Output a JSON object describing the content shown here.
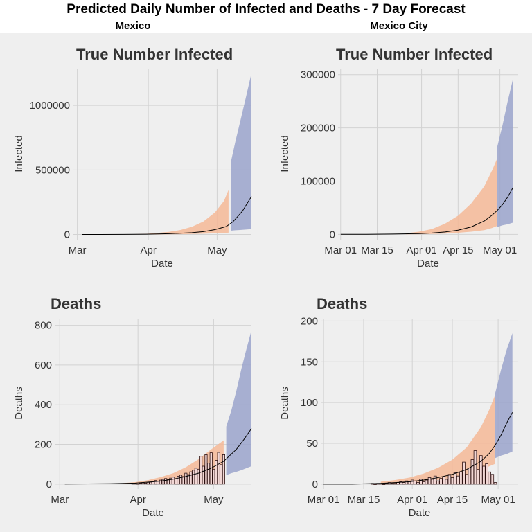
{
  "page": {
    "title": "Predicted Daily Number of Infected and Deaths - 7 Day Forecast",
    "left_column_title": "Mexico",
    "right_column_title": "Mexico City"
  },
  "colors": {
    "panel_bg": "#efefef",
    "grid": "#d2d2d2",
    "history_band": "#f4b896",
    "forecast_band": "#9aa3cb",
    "line": "#000000",
    "bar_fill": "#f2d7d5",
    "bar_stroke": "#2b1010",
    "text": "#333333"
  },
  "chart_data": [
    {
      "id": "mexico-infected",
      "type": "line",
      "title": "True Number Infected",
      "xlabel": "Date",
      "ylabel": "Infected",
      "xlim": [
        -2,
        76
      ],
      "ylim": [
        -40000,
        1280000
      ],
      "x_ticks": [
        {
          "x": 0,
          "label": "Mar"
        },
        {
          "x": 31,
          "label": "Apr"
        },
        {
          "x": 61,
          "label": "May"
        }
      ],
      "y_ticks": [
        {
          "y": 0,
          "label": "0"
        },
        {
          "y": 500000,
          "label": "500000"
        },
        {
          "y": 1000000,
          "label": "1000000"
        }
      ],
      "estimate": {
        "x": [
          2,
          10,
          20,
          30,
          40,
          50,
          55,
          60,
          65,
          68,
          72,
          76
        ],
        "y": [
          0,
          200,
          800,
          2500,
          6000,
          14000,
          22000,
          38000,
          62000,
          100000,
          180000,
          295000
        ]
      },
      "history_band": {
        "x": [
          20,
          30,
          40,
          45,
          50,
          55,
          60,
          64,
          66
        ],
        "lower": [
          0,
          500,
          1500,
          2500,
          4000,
          6000,
          9000,
          12000,
          14000
        ],
        "upper": [
          1000,
          5000,
          20000,
          35000,
          60000,
          100000,
          170000,
          260000,
          345000
        ]
      },
      "forecast_band": {
        "x": [
          67,
          69,
          71,
          73,
          76
        ],
        "lower": [
          30000,
          33000,
          35000,
          38000,
          42000
        ],
        "upper": [
          560000,
          720000,
          870000,
          1020000,
          1250000
        ]
      }
    },
    {
      "id": "mexico-city-infected",
      "type": "line",
      "title": "True Number Infected",
      "xlabel": "Date",
      "ylabel": "Infected",
      "xlim": [
        -1,
        68
      ],
      "ylim": [
        -10000,
        310000
      ],
      "x_ticks": [
        {
          "x": 0,
          "label": "Mar 01"
        },
        {
          "x": 14,
          "label": "Mar 15"
        },
        {
          "x": 31,
          "label": "Apr 01"
        },
        {
          "x": 45,
          "label": "Apr 15"
        },
        {
          "x": 61,
          "label": "May 01"
        }
      ],
      "y_ticks": [
        {
          "y": 0,
          "label": "0"
        },
        {
          "y": 100000,
          "label": "100000"
        },
        {
          "y": 200000,
          "label": "200000"
        },
        {
          "y": 300000,
          "label": "300000"
        }
      ],
      "estimate": {
        "x": [
          0,
          10,
          20,
          30,
          35,
          40,
          45,
          50,
          55,
          58,
          60,
          62,
          64,
          66
        ],
        "y": [
          0,
          100,
          500,
          1500,
          2500,
          4500,
          8000,
          14000,
          25000,
          36000,
          45000,
          56000,
          70000,
          88000
        ]
      },
      "history_band": {
        "x": [
          25,
          30,
          35,
          40,
          45,
          50,
          55,
          58,
          60
        ],
        "lower": [
          0,
          300,
          800,
          1500,
          3000,
          5000,
          8000,
          12000,
          16000
        ],
        "upper": [
          2000,
          5000,
          10000,
          20000,
          35000,
          58000,
          90000,
          120000,
          143000
        ]
      },
      "forecast_band": {
        "x": [
          60,
          62,
          64,
          66
        ],
        "lower": [
          14000,
          17000,
          19000,
          22000
        ],
        "upper": [
          165000,
          205000,
          250000,
          292000
        ]
      }
    },
    {
      "id": "mexico-deaths",
      "type": "bar",
      "title": "Deaths",
      "xlabel": "Date",
      "ylabel": "Deaths",
      "xlim": [
        -2,
        76
      ],
      "ylim": [
        -25,
        830
      ],
      "x_ticks": [
        {
          "x": 0,
          "label": "Mar"
        },
        {
          "x": 31,
          "label": "Apr"
        },
        {
          "x": 61,
          "label": "May"
        }
      ],
      "y_ticks": [
        {
          "y": 0,
          "label": "0"
        },
        {
          "y": 200,
          "label": "200"
        },
        {
          "y": 400,
          "label": "400"
        },
        {
          "y": 600,
          "label": "600"
        },
        {
          "y": 800,
          "label": "800"
        }
      ],
      "bars": {
        "x": [
          29,
          30,
          31,
          32,
          33,
          34,
          35,
          36,
          37,
          38,
          39,
          40,
          41,
          42,
          43,
          44,
          45,
          46,
          47,
          48,
          49,
          50,
          51,
          52,
          53,
          54,
          55,
          56,
          57,
          58,
          59,
          60,
          61,
          62,
          63,
          64,
          65
        ],
        "values": [
          2,
          3,
          1,
          4,
          6,
          5,
          9,
          10,
          12,
          18,
          15,
          20,
          24,
          28,
          22,
          30,
          35,
          26,
          40,
          45,
          38,
          55,
          48,
          62,
          70,
          80,
          75,
          140,
          90,
          148,
          105,
          158,
          75,
          120,
          160,
          98,
          148
        ]
      },
      "estimate": {
        "x": [
          2,
          20,
          30,
          40,
          45,
          50,
          55,
          60,
          65,
          70,
          73,
          76
        ],
        "y": [
          0,
          2,
          5,
          15,
          25,
          38,
          55,
          80,
          115,
          175,
          225,
          280
        ]
      },
      "history_band": {
        "x": [
          25,
          30,
          35,
          40,
          45,
          50,
          55,
          60,
          65
        ],
        "lower": [
          0,
          1,
          3,
          6,
          12,
          20,
          30,
          45,
          60
        ],
        "upper": [
          5,
          10,
          20,
          35,
          55,
          85,
          125,
          175,
          220
        ]
      },
      "forecast_band": {
        "x": [
          66,
          68,
          70,
          72,
          74,
          76
        ],
        "lower": [
          45,
          55,
          62,
          70,
          80,
          90
        ],
        "upper": [
          290,
          370,
          470,
          580,
          680,
          775
        ]
      }
    },
    {
      "id": "mexico-city-deaths",
      "type": "bar",
      "title": "Deaths",
      "xlabel": "Date",
      "ylabel": "Deaths",
      "xlim": [
        -1,
        68
      ],
      "ylim": [
        -6,
        202
      ],
      "x_ticks": [
        {
          "x": 0,
          "label": "Mar 01"
        },
        {
          "x": 14,
          "label": "Mar 15"
        },
        {
          "x": 31,
          "label": "Apr 01"
        },
        {
          "x": 45,
          "label": "Apr 15"
        },
        {
          "x": 61,
          "label": "May 01"
        }
      ],
      "y_ticks": [
        {
          "y": 0,
          "label": "0"
        },
        {
          "y": 50,
          "label": "50"
        },
        {
          "y": 100,
          "label": "100"
        },
        {
          "y": 150,
          "label": "150"
        },
        {
          "y": 200,
          "label": "200"
        }
      ],
      "bars": {
        "x": [
          17,
          18,
          19,
          20,
          21,
          22,
          23,
          24,
          25,
          26,
          27,
          28,
          29,
          30,
          31,
          32,
          33,
          34,
          35,
          36,
          37,
          38,
          39,
          40,
          41,
          42,
          43,
          44,
          45,
          46,
          47,
          48,
          49,
          50,
          51,
          52,
          53,
          54,
          55,
          56,
          57,
          58,
          59,
          60
        ],
        "values": [
          1,
          0,
          1,
          1,
          0,
          1,
          2,
          1,
          1,
          2,
          3,
          2,
          4,
          3,
          5,
          4,
          2,
          6,
          3,
          5,
          8,
          6,
          10,
          4,
          7,
          9,
          6,
          12,
          8,
          14,
          10,
          15,
          27,
          12,
          20,
          30,
          41,
          18,
          35,
          22,
          25,
          15,
          12,
          2
        ]
      },
      "estimate": {
        "x": [
          0,
          10,
          20,
          25,
          30,
          35,
          40,
          45,
          50,
          55,
          58,
          60,
          62,
          64,
          66
        ],
        "y": [
          0,
          0,
          1,
          2,
          3,
          5,
          8,
          12,
          18,
          28,
          38,
          48,
          60,
          75,
          88
        ]
      },
      "history_band": {
        "x": [
          20,
          25,
          30,
          35,
          40,
          45,
          50,
          55,
          58,
          60
        ],
        "lower": [
          0,
          1,
          2,
          3,
          5,
          8,
          12,
          17,
          22,
          25
        ],
        "upper": [
          3,
          5,
          8,
          13,
          20,
          30,
          45,
          70,
          92,
          110
        ]
      },
      "forecast_band": {
        "x": [
          60,
          62,
          64,
          66
        ],
        "lower": [
          32,
          35,
          37,
          40
        ],
        "upper": [
          112,
          140,
          165,
          185
        ]
      }
    }
  ]
}
